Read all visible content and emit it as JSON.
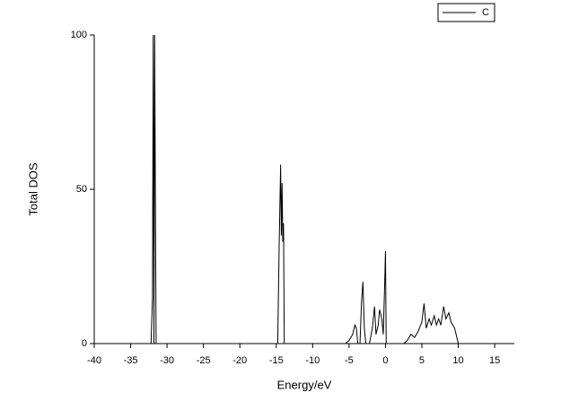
{
  "chart_data": {
    "type": "line",
    "x_label": "Energy/eV",
    "y_label": "Total DOS",
    "x": [
      -40,
      -32.2,
      -32.0,
      -31.9,
      -31.8,
      -31.7,
      -31.6,
      -31.5,
      -14.8,
      -14.6,
      -14.4,
      -14.3,
      -14.2,
      -14.1,
      -14.0,
      -13.9,
      -5.5,
      -5.0,
      -4.5,
      -4.2,
      -4.0,
      -3.8,
      -3.5,
      -3.3,
      -3.1,
      -2.9,
      -2.7,
      -2.2,
      -1.8,
      -1.5,
      -1.3,
      -1.0,
      -0.8,
      -0.5,
      -0.3,
      -0.1,
      0.0,
      0.1,
      2.5,
      3.0,
      3.5,
      4.0,
      4.5,
      5.0,
      5.3,
      5.6,
      6.0,
      6.3,
      6.7,
      7.0,
      7.3,
      7.6,
      8.0,
      8.3,
      8.7,
      9.0,
      9.5,
      10.0
    ],
    "series": [
      {
        "name": "C",
        "color": "#000000",
        "values": [
          0,
          0,
          15,
          100,
          0,
          100,
          47,
          0,
          0,
          32,
          58,
          35,
          52,
          33,
          39,
          0,
          0,
          1,
          3,
          6,
          5,
          0,
          0,
          13,
          20,
          5,
          0,
          0,
          5,
          12,
          3,
          6,
          11,
          8,
          3,
          20,
          30,
          0,
          0,
          1,
          3,
          2,
          4,
          7,
          13,
          5,
          8,
          6,
          9,
          6,
          8,
          6,
          12,
          8,
          10,
          7,
          5,
          0
        ]
      }
    ],
    "xlim": [
      -40,
      17.7
    ],
    "ylim": [
      0,
      100
    ],
    "xticks": [
      -40,
      -35,
      -30,
      -25,
      -20,
      -15,
      -10,
      -5,
      0,
      5,
      10,
      15
    ],
    "yticks": [
      0,
      50,
      100
    ],
    "grid": false,
    "legend": "top-right"
  }
}
